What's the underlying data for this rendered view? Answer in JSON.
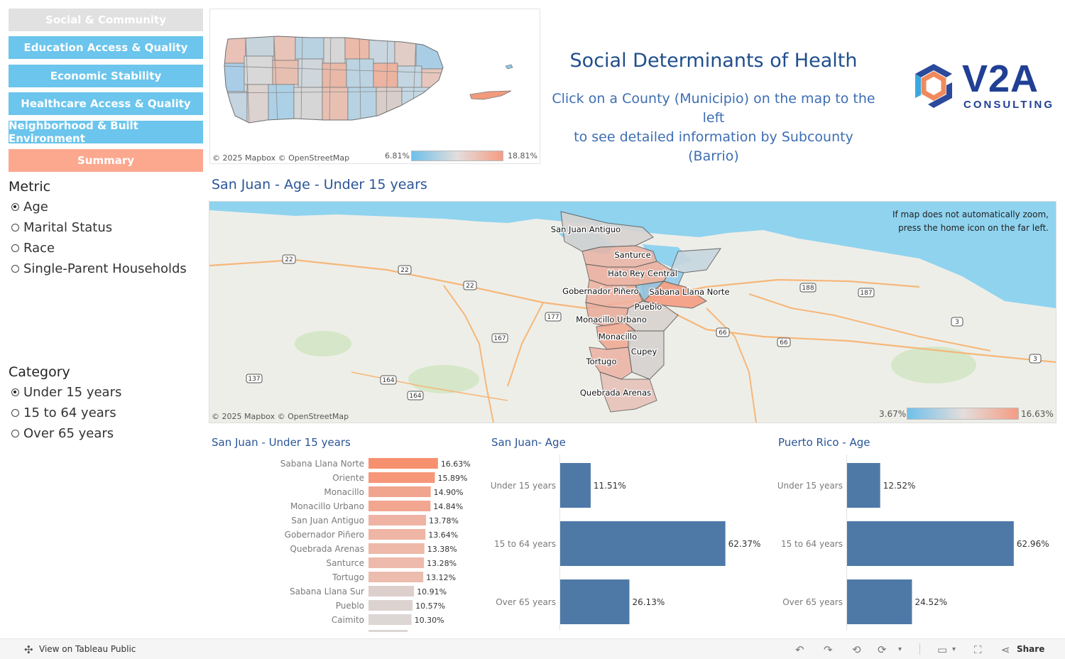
{
  "nav": [
    {
      "label": "Social & Community",
      "color": "#e1e1e1"
    },
    {
      "label": "Education Access & Quality",
      "color": "#6bc5ec"
    },
    {
      "label": "Economic Stability",
      "color": "#6bc5ec"
    },
    {
      "label": "Healthcare Access & Quality",
      "color": "#6bc5ec"
    },
    {
      "label": "Neighborhood & Built Environment",
      "color": "#6bc5ec"
    },
    {
      "label": "Summary",
      "color": "#fba88f"
    }
  ],
  "metric": {
    "heading": "Metric",
    "options": [
      "Age",
      "Marital Status",
      "Race",
      "Single-Parent Households"
    ],
    "selected": "Age"
  },
  "category": {
    "heading": "Category",
    "options": [
      "Under 15 years",
      "15 to 64 years",
      "Over 65 years"
    ],
    "selected": "Under 15 years"
  },
  "header": {
    "title": "Social Determinants of Health",
    "subtitle_line1": "Click on a County (Municipio) on the map to the left",
    "subtitle_line2": "to see detailed information by Subcounty (Barrio)",
    "logo_text": "V2A",
    "logo_sub": "CONSULTING"
  },
  "pr_map": {
    "credit": "© 2025 Mapbox  © OpenStreetMap",
    "legend_min": "6.81%",
    "legend_max": "18.81%"
  },
  "sj_map": {
    "title": "San Juan - Age - Under 15 years",
    "note_line1": "If map does not automatically zoom,",
    "note_line2": "press the home icon on the far left.",
    "credit": "© 2025 Mapbox  © OpenStreetMap",
    "legend_min": "3.67%",
    "legend_max": "16.63%",
    "barrio_labels": [
      "San Juan Antiguo",
      "Santurce",
      "Hato Rey Central",
      "Gobernador Piñero",
      "Sabana Llana Norte",
      "Pueblo",
      "Monacillo Urbano",
      "Monacillo",
      "Cupey",
      "Tortugo",
      "Quebrada Arenas"
    ],
    "road_labels": [
      "22",
      "22",
      "22",
      "177",
      "167",
      "137",
      "164",
      "164",
      "188",
      "187",
      "66",
      "66",
      "3",
      "3"
    ]
  },
  "chart_data": [
    {
      "type": "bar",
      "title": "San Juan - Under 15 years",
      "categories": [
        "Sabana Llana Norte",
        "Oriente",
        "Monacillo",
        "Monacillo Urbano",
        "San Juan Antiguo",
        "Gobernador Piñero",
        "Quebrada Arenas",
        "Santurce",
        "Tortugo",
        "Sabana Llana Sur",
        "Pueblo",
        "Caimito"
      ],
      "values": [
        16.63,
        15.89,
        14.9,
        14.84,
        13.78,
        13.64,
        13.38,
        13.28,
        13.12,
        10.91,
        10.57,
        10.3
      ],
      "labels": [
        "16.63%",
        "15.89%",
        "14.90%",
        "14.84%",
        "13.78%",
        "13.64%",
        "13.38%",
        "13.28%",
        "13.12%",
        "10.91%",
        "10.57%",
        "10.30%"
      ],
      "colors": [
        "#f7906f",
        "#f79779",
        "#f2a58e",
        "#f2a690",
        "#efb3a3",
        "#efb5a5",
        "#eeb9a9",
        "#edbaab",
        "#ecbcae",
        "#ddcfcc",
        "#dcd3d1",
        "#dcd6d4"
      ],
      "xlim": [
        0,
        17
      ]
    },
    {
      "type": "bar",
      "title": "San Juan- Age",
      "categories": [
        "Under 15 years",
        "15 to 64 years",
        "Over 65 years"
      ],
      "values": [
        11.51,
        62.37,
        26.13
      ],
      "labels": [
        "11.51%",
        "62.37%",
        "26.13%"
      ],
      "color": "#4e79a7",
      "xlim": [
        0,
        63
      ]
    },
    {
      "type": "bar",
      "title": "Puerto Rico - Age",
      "categories": [
        "Under 15 years",
        "15 to 64 years",
        "Over 65 years"
      ],
      "values": [
        12.52,
        62.96,
        24.52
      ],
      "labels": [
        "12.52%",
        "62.96%",
        "24.52%"
      ],
      "color": "#4e79a7",
      "xlim": [
        0,
        63
      ]
    }
  ],
  "footer": {
    "view_label": "View on Tableau Public",
    "share_label": "Share"
  }
}
